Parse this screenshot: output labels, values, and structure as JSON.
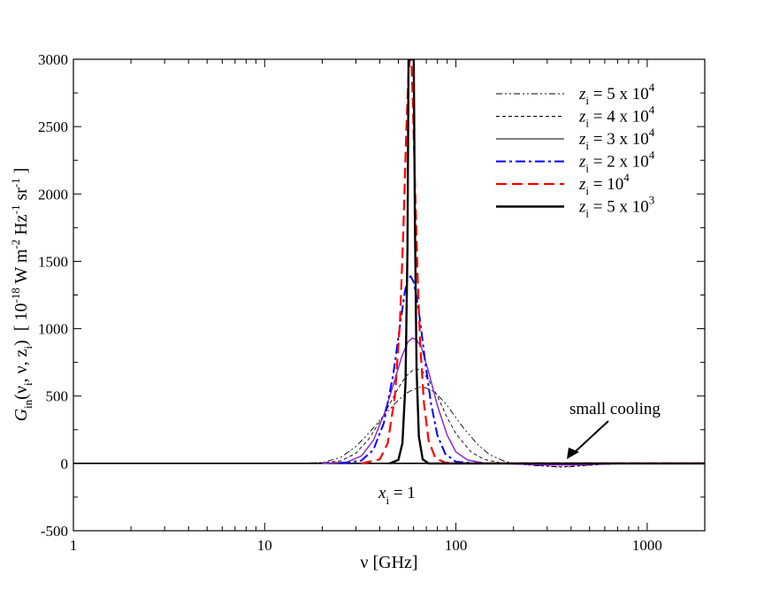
{
  "chart_data": {
    "type": "line",
    "xlabel": "ν [GHz]",
    "ylabel": {
      "sym": "G",
      "sub": "in",
      "args": "(ν",
      "args_sub": "i",
      "args2": ", ν, z",
      "args_sub2": "i",
      "args3": ")",
      "units": "[ 10",
      "units_exp": "-18",
      "units2": " W m",
      "units_exp2": "-2",
      "units3": " Hz",
      "units_exp3": "-1",
      "units4": " sr",
      "units_exp4": "-1",
      "units5": " ]"
    },
    "xscale": "log",
    "xlim": [
      1,
      2000
    ],
    "ylim": [
      -500,
      3000
    ],
    "x_ticks": [
      1,
      10,
      100,
      1000
    ],
    "x_tick_labels": [
      "1",
      "10",
      "100",
      "1000"
    ],
    "y_ticks": [
      -500,
      0,
      500,
      1000,
      1500,
      2000,
      2500,
      3000
    ],
    "y_tick_labels": [
      "-500",
      "0",
      "500",
      "1000",
      "1500",
      "2000",
      "2500",
      "3000"
    ],
    "grid": false,
    "legend_position": "top-right",
    "series": [
      {
        "name": "z_i = 5 x 10^4",
        "label": {
          "z": "z",
          "sub": "i",
          "mid": " = 5 x 10",
          "exp": "4"
        },
        "color": "#000000",
        "dash": "7,3,2,3,2,3",
        "width": 0.9,
        "key": [
          [
            14.0,
            0
          ],
          [
            20.0,
            6
          ],
          [
            25.0,
            45
          ],
          [
            30.0,
            125
          ],
          [
            35.0,
            225
          ],
          [
            40.0,
            320
          ],
          [
            45.0,
            400
          ],
          [
            50.0,
            470
          ],
          [
            55.0,
            520
          ],
          [
            60.0,
            550
          ],
          [
            65.0,
            565
          ],
          [
            70.0,
            560
          ],
          [
            75.0,
            540
          ],
          [
            80.0,
            510
          ],
          [
            90.0,
            430
          ],
          [
            100.0,
            340
          ],
          [
            110.0,
            260
          ],
          [
            130.0,
            140
          ],
          [
            150.0,
            65
          ],
          [
            180.0,
            15
          ],
          [
            210.0,
            -5
          ],
          [
            250.0,
            -15
          ],
          [
            300.0,
            -22
          ],
          [
            350.0,
            -28
          ],
          [
            400.0,
            -25
          ],
          [
            500.0,
            -12
          ],
          [
            700.0,
            -3
          ],
          [
            1000.0,
            0
          ],
          [
            2000.0,
            0
          ]
        ]
      },
      {
        "name": "z_i = 4 x 10^4",
        "label": {
          "z": "z",
          "sub": "i",
          "mid": " = 4 x 10",
          "exp": "4"
        },
        "color": "#000000",
        "dash": "4,3",
        "width": 0.9,
        "key": [
          [
            18.0,
            0
          ],
          [
            25.0,
            18
          ],
          [
            30.0,
            75
          ],
          [
            35.0,
            180
          ],
          [
            40.0,
            310
          ],
          [
            45.0,
            440
          ],
          [
            50.0,
            560
          ],
          [
            55.0,
            650
          ],
          [
            60.0,
            695
          ],
          [
            63.0,
            700
          ],
          [
            67.0,
            680
          ],
          [
            72.0,
            620
          ],
          [
            80.0,
            500
          ],
          [
            90.0,
            340
          ],
          [
            100.0,
            220
          ],
          [
            120.0,
            85
          ],
          [
            140.0,
            30
          ],
          [
            170.0,
            5
          ],
          [
            210.0,
            -5
          ],
          [
            280.0,
            -18
          ],
          [
            350.0,
            -25
          ],
          [
            450.0,
            -18
          ],
          [
            600.0,
            -7
          ],
          [
            900.0,
            0
          ],
          [
            2000.0,
            0
          ]
        ]
      },
      {
        "name": "z_i = 3 x 10^4",
        "label": {
          "z": "z",
          "sub": "i",
          "mid": " = 3 x 10",
          "exp": "4"
        },
        "color": "#8B1FD6",
        "dash": "",
        "width": 1.4,
        "key": [
          [
            20.0,
            0
          ],
          [
            27.0,
            10
          ],
          [
            32.0,
            55
          ],
          [
            37.0,
            170
          ],
          [
            42.0,
            360
          ],
          [
            47.0,
            580
          ],
          [
            52.0,
            790
          ],
          [
            56.0,
            900
          ],
          [
            59.0,
            930
          ],
          [
            62.0,
            920
          ],
          [
            66.0,
            860
          ],
          [
            72.0,
            680
          ],
          [
            80.0,
            430
          ],
          [
            90.0,
            210
          ],
          [
            100.0,
            85
          ],
          [
            115.0,
            25
          ],
          [
            140.0,
            3
          ],
          [
            200.0,
            -5
          ],
          [
            300.0,
            -12
          ],
          [
            400.0,
            -12
          ],
          [
            600.0,
            -5
          ],
          [
            900.0,
            0
          ],
          [
            2000.0,
            0
          ]
        ]
      },
      {
        "name": "z_i = 2 x 10^4",
        "label": {
          "z": "z",
          "sub": "i",
          "mid": " = 2 x 10",
          "exp": "4"
        },
        "color": "#0000FF",
        "dash": "11,4,3,4",
        "width": 2.0,
        "key": [
          [
            25.0,
            0
          ],
          [
            32.0,
            20
          ],
          [
            37.0,
            100
          ],
          [
            42.0,
            300
          ],
          [
            47.0,
            660
          ],
          [
            51.0,
            1020
          ],
          [
            54.0,
            1270
          ],
          [
            56.0,
            1370
          ],
          [
            58.0,
            1390
          ],
          [
            60.0,
            1350
          ],
          [
            62.0,
            1250
          ],
          [
            65.0,
            1060
          ],
          [
            69.0,
            760
          ],
          [
            74.0,
            450
          ],
          [
            80.0,
            210
          ],
          [
            88.0,
            70
          ],
          [
            100.0,
            12
          ],
          [
            130.0,
            0
          ],
          [
            2000.0,
            0
          ]
        ]
      },
      {
        "name": "z_i = 10^4",
        "label": {
          "z": "z",
          "sub": "i",
          "mid": " = 10",
          "exp": "4"
        },
        "color": "#FF0000",
        "dash": "12,6",
        "width": 2.2,
        "key": [
          [
            32.0,
            0
          ],
          [
            40.0,
            30
          ],
          [
            44.0,
            150
          ],
          [
            48.0,
            500
          ],
          [
            51.0,
            1050
          ],
          [
            53.0,
            1700
          ],
          [
            55.0,
            2450
          ],
          [
            56.5,
            2900
          ],
          [
            57.5,
            3000
          ],
          [
            58.5,
            3000
          ],
          [
            59.5,
            2700
          ],
          [
            61.0,
            2100
          ],
          [
            63.0,
            1400
          ],
          [
            65.0,
            900
          ],
          [
            68.0,
            450
          ],
          [
            72.0,
            170
          ],
          [
            78.0,
            40
          ],
          [
            88.0,
            5
          ],
          [
            110.0,
            0
          ],
          [
            2000.0,
            0
          ]
        ]
      },
      {
        "name": "z_i = 5 x 10^3",
        "label": {
          "z": "z",
          "sub": "i",
          "mid": " = 5 x 10",
          "exp": "3"
        },
        "color": "#000000",
        "dash": "",
        "width": 2.4,
        "key": [
          [
            45.0,
            0
          ],
          [
            50.0,
            25
          ],
          [
            52.5,
            150
          ],
          [
            54.5,
            600
          ],
          [
            55.8,
            1600
          ],
          [
            56.5,
            3000
          ],
          [
            60.2,
            3000
          ],
          [
            61.0,
            1800
          ],
          [
            62.3,
            700
          ],
          [
            64.0,
            200
          ],
          [
            67.0,
            30
          ],
          [
            72.0,
            0
          ],
          [
            2000.0,
            0
          ]
        ]
      }
    ],
    "annotations": [
      {
        "text": "small cooling",
        "target": [
          380,
          -5
        ]
      },
      {
        "text": {
          "x": "x",
          "sub": "i",
          "rest": " = 1"
        }
      }
    ]
  }
}
